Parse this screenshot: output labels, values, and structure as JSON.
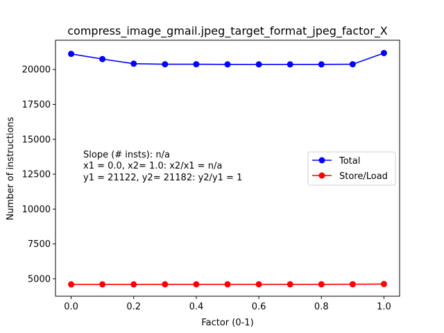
{
  "chart_data": {
    "type": "line",
    "title": "compress_image_gmail.jpeg_target_format_jpeg_factor_X",
    "xlabel": "Factor (0-1)",
    "ylabel": "Number of instructions",
    "xlim": [
      -0.05,
      1.05
    ],
    "ylim": [
      3750,
      22100
    ],
    "xticks": [
      0.0,
      0.2,
      0.4,
      0.6,
      0.8,
      1.0
    ],
    "xtick_labels": [
      "0.0",
      "0.2",
      "0.4",
      "0.6",
      "0.8",
      "1.0"
    ],
    "yticks": [
      5000,
      7500,
      10000,
      12500,
      15000,
      17500,
      20000
    ],
    "ytick_labels": [
      "5000",
      "7500",
      "10000",
      "12500",
      "15000",
      "17500",
      "20000"
    ],
    "x": [
      0.0,
      0.1,
      0.2,
      0.3,
      0.4,
      0.5,
      0.6,
      0.7,
      0.8,
      0.9,
      1.0
    ],
    "series": [
      {
        "name": "Total",
        "color": "#0000ff",
        "marker": "circle",
        "values": [
          21122,
          20750,
          20420,
          20380,
          20380,
          20370,
          20370,
          20370,
          20370,
          20380,
          21182
        ]
      },
      {
        "name": "Store/Load",
        "color": "#ff0000",
        "marker": "circle",
        "values": [
          4600,
          4600,
          4600,
          4605,
          4605,
          4605,
          4605,
          4605,
          4605,
          4610,
          4625
        ]
      }
    ],
    "annotations": [
      "Slope (# insts): n/a",
      "x1 = 0.0, x2= 1.0: x2/x1 = n/a",
      "y1 = 21122, y2= 21182: y2/y1 = 1"
    ],
    "legend_position": "center-right",
    "grid": false
  }
}
